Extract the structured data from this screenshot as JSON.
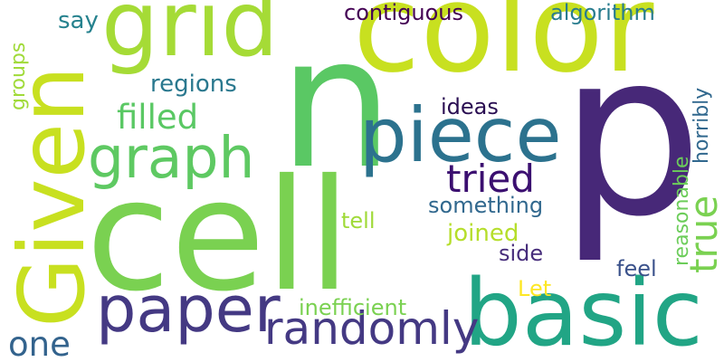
{
  "words": [
    {
      "id": "p",
      "text": "p",
      "color": "#472878"
    },
    {
      "id": "n",
      "text": "n",
      "color": "#5ac864"
    },
    {
      "id": "cell",
      "text": "cell",
      "color": "#7ad151"
    },
    {
      "id": "color",
      "text": "color",
      "color": "#c8e020"
    },
    {
      "id": "grid",
      "text": "grid",
      "color": "#a5db36"
    },
    {
      "id": "Given",
      "text": "Given",
      "color": "#c8e020"
    },
    {
      "id": "basic",
      "text": "basic",
      "color": "#21a585"
    },
    {
      "id": "piece",
      "text": "piece",
      "color": "#2c728e"
    },
    {
      "id": "paper",
      "text": "paper",
      "color": "#443983"
    },
    {
      "id": "graph",
      "text": "graph",
      "color": "#5ec962"
    },
    {
      "id": "randomly",
      "text": "randomly",
      "color": "#443983"
    },
    {
      "id": "filled",
      "text": "filled",
      "color": "#5ac864"
    },
    {
      "id": "tried",
      "text": "tried",
      "color": "#3b0f70"
    },
    {
      "id": "true",
      "text": "true",
      "color": "#7ad151"
    },
    {
      "id": "one",
      "text": "one",
      "color": "#33638d"
    },
    {
      "id": "regions",
      "text": "regions",
      "color": "#2a788e"
    },
    {
      "id": "contiguous",
      "text": "contiguous",
      "color": "#440154"
    },
    {
      "id": "algorithm",
      "text": "algorithm",
      "color": "#287c8e"
    },
    {
      "id": "say",
      "text": "say",
      "color": "#26828e"
    },
    {
      "id": "groups",
      "text": "groups",
      "color": "#a0da39"
    },
    {
      "id": "ideas",
      "text": "ideas",
      "color": "#2a0e52"
    },
    {
      "id": "something",
      "text": "something",
      "color": "#31688e"
    },
    {
      "id": "joined",
      "text": "joined",
      "color": "#b5de2b"
    },
    {
      "id": "tell",
      "text": "tell",
      "color": "#a0da39"
    },
    {
      "id": "side",
      "text": "side",
      "color": "#472d7b"
    },
    {
      "id": "feel",
      "text": "feel",
      "color": "#3b528b"
    },
    {
      "id": "Let",
      "text": "Let",
      "color": "#fde725"
    },
    {
      "id": "inefficient",
      "text": "inefficient",
      "color": "#7ad151"
    },
    {
      "id": "reasonable",
      "text": "reasonable",
      "color": "#6ccd5a"
    },
    {
      "id": "horribly",
      "text": "horribly",
      "color": "#31688e"
    }
  ]
}
